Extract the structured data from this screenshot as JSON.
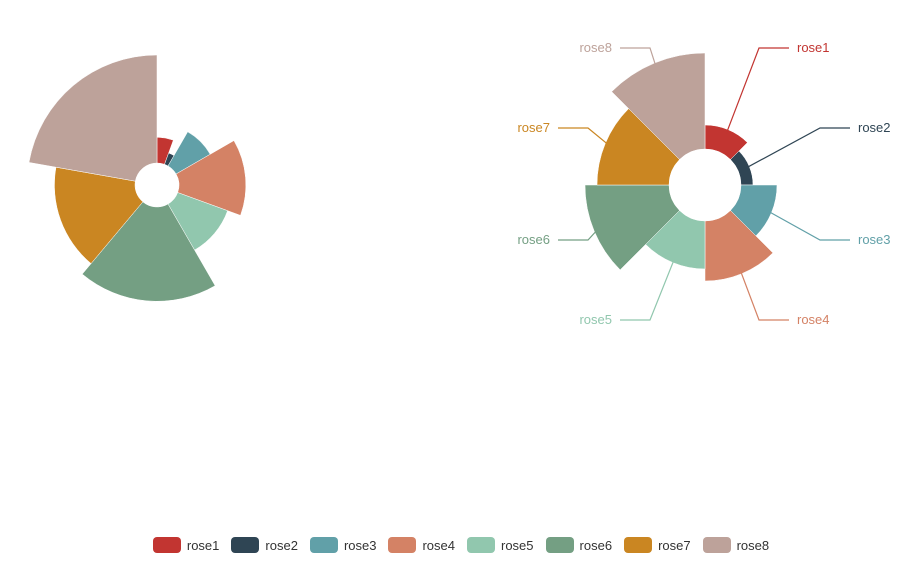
{
  "chart_data": [
    {
      "type": "pie",
      "variant": "nightingale-radius",
      "label_position": "none",
      "categories": [
        "rose1",
        "rose2",
        "rose3",
        "rose4",
        "rose5",
        "rose6",
        "rose7",
        "rose8"
      ],
      "values": [
        10,
        5,
        15,
        25,
        20,
        35,
        30,
        40
      ]
    },
    {
      "type": "pie",
      "variant": "nightingale-area",
      "label_position": "outside",
      "categories": [
        "rose1",
        "rose2",
        "rose3",
        "rose4",
        "rose5",
        "rose6",
        "rose7",
        "rose8"
      ],
      "values": [
        10,
        5,
        15,
        25,
        20,
        35,
        30,
        40
      ]
    }
  ],
  "colors": [
    "#c23531",
    "#2f4554",
    "#61a0a8",
    "#d48265",
    "#91c7ae",
    "#749f83",
    "#ca8622",
    "#bda29a"
  ],
  "legend": {
    "items": [
      "rose1",
      "rose2",
      "rose3",
      "rose4",
      "rose5",
      "rose6",
      "rose7",
      "rose8"
    ]
  }
}
